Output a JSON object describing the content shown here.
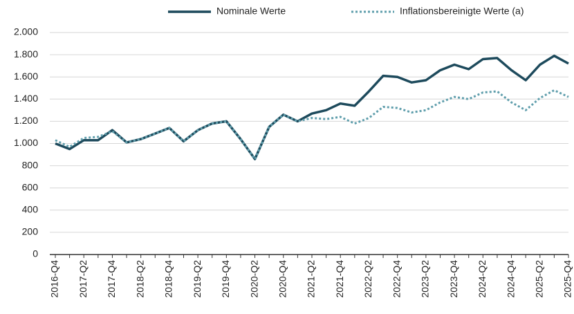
{
  "chart_data": {
    "type": "line",
    "categories": [
      "2016-Q4",
      null,
      "2017-Q2",
      null,
      "2017-Q4",
      null,
      "2018-Q2",
      null,
      "2018-Q4",
      null,
      "2019-Q2",
      null,
      "2019-Q4",
      null,
      "2020-Q2",
      null,
      "2020-Q4",
      null,
      "2021-Q2",
      null,
      "2021-Q4",
      null,
      "2022-Q2",
      null,
      "2022-Q4",
      null,
      "2023-Q2",
      null,
      "2023-Q4",
      null,
      "2024-Q2",
      null,
      "2024-Q4",
      null,
      "2025-Q2",
      null,
      "2025-Q4"
    ],
    "series": [
      {
        "name": "Nominale Werte",
        "color": "#1d4a5c",
        "dash": "solid",
        "values": [
          1000,
          950,
          1030,
          1030,
          1120,
          1010,
          1040,
          1090,
          1140,
          1020,
          1120,
          1180,
          1200,
          1040,
          860,
          1150,
          1260,
          1200,
          1270,
          1300,
          1360,
          1340,
          1470,
          1610,
          1600,
          1550,
          1570,
          1660,
          1710,
          1670,
          1760,
          1770,
          1660,
          1570,
          1710,
          1790,
          1720
        ]
      },
      {
        "name": "Inflationsbereinigte Werte (a)",
        "color": "#5f9eac",
        "dash": "dotted",
        "values": [
          1030,
          970,
          1050,
          1060,
          1110,
          1010,
          1040,
          1090,
          1140,
          1020,
          1120,
          1180,
          1200,
          1040,
          860,
          1150,
          1260,
          1200,
          1230,
          1220,
          1240,
          1180,
          1230,
          1330,
          1320,
          1280,
          1300,
          1370,
          1420,
          1400,
          1460,
          1470,
          1370,
          1300,
          1410,
          1480,
          1420
        ]
      }
    ],
    "ylim": [
      0,
      2000
    ],
    "yticks": [
      0,
      200,
      400,
      600,
      800,
      {
        "value": 1000,
        "label": "1.000"
      },
      {
        "value": 1200,
        "label": "1.200"
      },
      {
        "value": 1400,
        "label": "1.400"
      },
      {
        "value": 1600,
        "label": "1.600"
      },
      {
        "value": 1800,
        "label": "1.800"
      },
      {
        "value": 2000,
        "label": "2.000"
      }
    ],
    "grid": true,
    "legend": "top"
  }
}
